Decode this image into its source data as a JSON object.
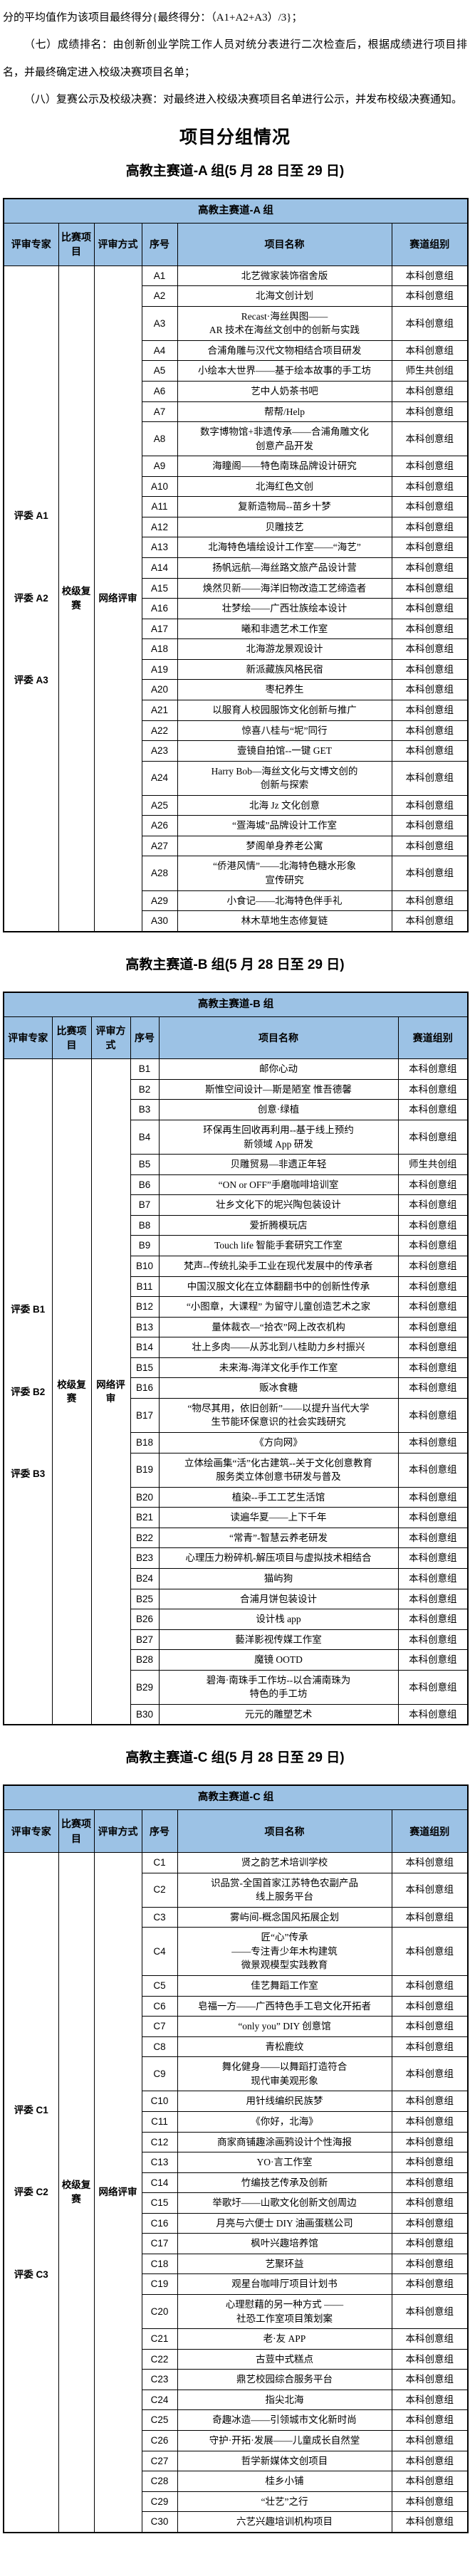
{
  "colors": {
    "header_bg": "#9CC2E5",
    "border": "#000000",
    "text": "#000000"
  },
  "intro": {
    "continuation": "分的平均值作为该项目最终得分{最终得分：（A1+A2+A3）/3}；",
    "item7": "（七）成绩排名：由创新创业学院工作人员对统分表进行二次检查后，根据成绩进行项目排名，并最终确定进入校级决赛项目名单；",
    "item8": "（八）复赛公示及校级决赛：对最终进入校级决赛项目名单进行公示，并发布校级决赛通知。"
  },
  "page_title": "项目分组情况",
  "groups": [
    {
      "heading": "高教主赛道-A 组(5 月 28 日至 29 日)",
      "table_title": "高教主赛道-A 组",
      "columns": [
        "评审专家",
        "比赛项目",
        "评审方式",
        "序号",
        "项目名称",
        "赛道组别"
      ],
      "experts": [
        "评委 A1",
        "评委 A2",
        "评委 A3"
      ],
      "contest_stage": "校级复赛",
      "review_mode": "网络评审",
      "rows": [
        {
          "no": "A1",
          "name": "北艺微家装饰宿舍版",
          "group": "本科创意组"
        },
        {
          "no": "A2",
          "name": "北海文创计划",
          "group": "本科创意组"
        },
        {
          "no": "A3",
          "name": "Recast·海丝舆图——\nAR 技术在海丝文创中的创新与实践",
          "group": "本科创意组"
        },
        {
          "no": "A4",
          "name": "合浦角雕与汉代文物相结合项目研发",
          "group": "本科创意组"
        },
        {
          "no": "A5",
          "name": "小绘本大世界——基于绘本故事的手工坊",
          "group": "师生共创组"
        },
        {
          "no": "A6",
          "name": "艺中人奶茶书吧",
          "group": "本科创意组"
        },
        {
          "no": "A7",
          "name": "帮帮/Help",
          "group": "本科创意组"
        },
        {
          "no": "A8",
          "name": "数字博物馆+非遗传承——合浦角雕文化\n创意产品开发",
          "group": "本科创意组"
        },
        {
          "no": "A9",
          "name": "海瞳阁——特色南珠品牌设计研究",
          "group": "本科创意组"
        },
        {
          "no": "A10",
          "name": "北海红色文创",
          "group": "本科创意组"
        },
        {
          "no": "A11",
          "name": "复新造物局--苗乡十梦",
          "group": "本科创意组"
        },
        {
          "no": "A12",
          "name": "贝雕技艺",
          "group": "本科创意组"
        },
        {
          "no": "A13",
          "name": "北海特色墙绘设计工作室——“海艺”",
          "group": "本科创意组"
        },
        {
          "no": "A14",
          "name": "扬帆远航—海丝路文旅产品设计营",
          "group": "本科创意组"
        },
        {
          "no": "A15",
          "name": "焕然贝新——海洋旧物改造工艺缔造者",
          "group": "本科创意组"
        },
        {
          "no": "A16",
          "name": "壮梦绘——广西壮族绘本设计",
          "group": "本科创意组"
        },
        {
          "no": "A17",
          "name": "曦和非遗艺术工作室",
          "group": "本科创意组"
        },
        {
          "no": "A18",
          "name": "北海游龙景观设计",
          "group": "本科创意组"
        },
        {
          "no": "A19",
          "name": "新派藏族风格民宿",
          "group": "本科创意组"
        },
        {
          "no": "A20",
          "name": "枣杞养生",
          "group": "本科创意组"
        },
        {
          "no": "A21",
          "name": "以服育人校园服饰文化创新与推广",
          "group": "本科创意组"
        },
        {
          "no": "A22",
          "name": "惊喜八桂与“坭”同行",
          "group": "本科创意组"
        },
        {
          "no": "A23",
          "name": "壹镜自拍馆--一键 GET",
          "group": "本科创意组"
        },
        {
          "no": "A24",
          "name": "Harry Bob—海丝文化与文博文创的\n创新与探索",
          "group": "本科创意组"
        },
        {
          "no": "A25",
          "name": "北海 Jz 文化创意",
          "group": "本科创意组"
        },
        {
          "no": "A26",
          "name": "“疍海城”品牌设计工作室",
          "group": "本科创意组"
        },
        {
          "no": "A27",
          "name": "梦阁单身养老公寓",
          "group": "本科创意组"
        },
        {
          "no": "A28",
          "name": "“侨港风情”——北海特色糖水形象\n宣传研究",
          "group": "本科创意组"
        },
        {
          "no": "A29",
          "name": "小食记——北海特色伴手礼",
          "group": "本科创意组"
        },
        {
          "no": "A30",
          "name": "林木草地生态修复链",
          "group": "本科创意组"
        }
      ]
    },
    {
      "heading": "高教主赛道-B 组(5 月 28 日至 29 日)",
      "table_title": "高教主赛道-B 组",
      "columns": [
        "评审专家",
        "比赛项目",
        "评审方式",
        "序号",
        "项目名称",
        "赛道组别"
      ],
      "experts": [
        "评委 B1",
        "评委 B2",
        "评委 B3"
      ],
      "contest_stage": "校级复赛",
      "review_mode": "网络评审",
      "rows": [
        {
          "no": "B1",
          "name": "邮你心动",
          "group": "本科创意组"
        },
        {
          "no": "B2",
          "name": "斯惟空间设计—斯是陋室 惟吾德馨",
          "group": "本科创意组"
        },
        {
          "no": "B3",
          "name": "创意·绿植",
          "group": "本科创意组"
        },
        {
          "no": "B4",
          "name": "环保再生回收再利用--基于线上预约\n新领域 App 研发",
          "group": "本科创意组"
        },
        {
          "no": "B5",
          "name": "贝雕贸易—非遗正年轻",
          "group": "师生共创组"
        },
        {
          "no": "B6",
          "name": "“ON or OFF”手磨咖啡培训室",
          "group": "本科创意组"
        },
        {
          "no": "B7",
          "name": "壮乡文化下的坭兴陶包装设计",
          "group": "本科创意组"
        },
        {
          "no": "B8",
          "name": "爱折腾模玩店",
          "group": "本科创意组"
        },
        {
          "no": "B9",
          "name": "Touch life 智能手套研究工作室",
          "group": "本科创意组"
        },
        {
          "no": "B10",
          "name": "梵声--传统扎染手工业在现代发展中的传承者",
          "group": "本科创意组"
        },
        {
          "no": "B11",
          "name": "中国汉服文化在立体翻翻书中的创新性传承",
          "group": "本科创意组"
        },
        {
          "no": "B12",
          "name": "“小图章，大课程” 为留守儿童创造艺术之家",
          "group": "本科创意组"
        },
        {
          "no": "B13",
          "name": "量体裁衣—“拾衣”网上改衣机构",
          "group": "本科创意组"
        },
        {
          "no": "B14",
          "name": "壮上多肉——从苏北到八桂助力乡村振兴",
          "group": "本科创意组"
        },
        {
          "no": "B15",
          "name": "未来海-海洋文化手作工作室",
          "group": "本科创意组"
        },
        {
          "no": "B16",
          "name": "贩冰食糖",
          "group": "本科创意组"
        },
        {
          "no": "B17",
          "name": "“物尽其用，依旧创新”——以提升当代大学\n生节能环保意识的社会实践研究",
          "group": "本科创意组"
        },
        {
          "no": "B18",
          "name": "《方向网》",
          "group": "本科创意组"
        },
        {
          "no": "B19",
          "name": "立体绘画集“活”化古建筑--关于文化创意教育\n服务类立体创意书研发与普及",
          "group": "本科创意组"
        },
        {
          "no": "B20",
          "name": "植染--手工工艺生活馆",
          "group": "本科创意组"
        },
        {
          "no": "B21",
          "name": "读遍华夏——上下千年",
          "group": "本科创意组"
        },
        {
          "no": "B22",
          "name": "“常青”-智慧云养老研发",
          "group": "本科创意组"
        },
        {
          "no": "B23",
          "name": "心理压力粉碎机-解压项目与虚拟技术相结合",
          "group": "本科创意组"
        },
        {
          "no": "B24",
          "name": "猫屿狗",
          "group": "本科创意组"
        },
        {
          "no": "B25",
          "name": "合浦月饼包装设计",
          "group": "本科创意组"
        },
        {
          "no": "B26",
          "name": "设计栈 app",
          "group": "本科创意组"
        },
        {
          "no": "B27",
          "name": "藝洋影视传媒工作室",
          "group": "本科创意组"
        },
        {
          "no": "B28",
          "name": "魔镜 OOTD",
          "group": "本科创意组"
        },
        {
          "no": "B29",
          "name": "碧海·南珠手工作坊--以合浦南珠为\n特色的手工坊",
          "group": "本科创意组"
        },
        {
          "no": "B30",
          "name": "元元的雕塑艺术",
          "group": "本科创意组"
        }
      ]
    },
    {
      "heading": "高教主赛道-C 组(5 月 28 日至 29 日)",
      "table_title": "高教主赛道-C 组",
      "columns": [
        "评审专家",
        "比赛项目",
        "评审方式",
        "序号",
        "项目名称",
        "赛道组别"
      ],
      "experts": [
        "评委 C1",
        "评委 C2",
        "评委 C3"
      ],
      "contest_stage": "校级复赛",
      "review_mode": "网络评审",
      "rows": [
        {
          "no": "C1",
          "name": "贤之韵艺术培训学校",
          "group": "本科创意组"
        },
        {
          "no": "C2",
          "name": "识品赏-全国首家江苏特色农副产品\n线上服务平台",
          "group": "本科创意组"
        },
        {
          "no": "C3",
          "name": "雾屿间-概念国风拓展企划",
          "group": "本科创意组"
        },
        {
          "no": "C4",
          "name": "匠“心”传承\n——专注青少年木构建筑\n微景观模型实践教育",
          "group": "本科创意组"
        },
        {
          "no": "C5",
          "name": "佳艺舞蹈工作室",
          "group": "本科创意组"
        },
        {
          "no": "C6",
          "name": "皂福一方——广西特色手工皂文化开拓者",
          "group": "本科创意组"
        },
        {
          "no": "C7",
          "name": "“only you” DIY 创意馆",
          "group": "本科创意组"
        },
        {
          "no": "C8",
          "name": "青松鹿纹",
          "group": "本科创意组"
        },
        {
          "no": "C9",
          "name": "舞化健身——以舞蹈打造符合\n现代审美观形象",
          "group": "本科创意组"
        },
        {
          "no": "C10",
          "name": "用针线编织民族梦",
          "group": "本科创意组"
        },
        {
          "no": "C11",
          "name": "《你好，北海》",
          "group": "本科创意组"
        },
        {
          "no": "C12",
          "name": "商家商铺趣涂画鸦设计个性海报",
          "group": "本科创意组"
        },
        {
          "no": "C13",
          "name": "YO·言工作室",
          "group": "本科创意组"
        },
        {
          "no": "C14",
          "name": "竹编技艺传承及创新",
          "group": "本科创意组"
        },
        {
          "no": "C15",
          "name": "举歌圩——山歌文化创新文创周边",
          "group": "本科创意组"
        },
        {
          "no": "C16",
          "name": "月亮与六便士 DIY 油画蛋糕公司",
          "group": "本科创意组"
        },
        {
          "no": "C17",
          "name": "枫叶兴趣培养馆",
          "group": "本科创意组"
        },
        {
          "no": "C18",
          "name": "艺聚环益",
          "group": "本科创意组"
        },
        {
          "no": "C19",
          "name": "观星台咖啡厅项目计划书",
          "group": "本科创意组"
        },
        {
          "no": "C20",
          "name": "心理慰藉的另一种方式 ——\n社恐工作室项目策划案",
          "group": "本科创意组"
        },
        {
          "no": "C21",
          "name": "老·友 APP",
          "group": "本科创意组"
        },
        {
          "no": "C22",
          "name": "古荳中式糕点",
          "group": "本科创意组"
        },
        {
          "no": "C23",
          "name": "鼎艺校园综合服务平台",
          "group": "本科创意组"
        },
        {
          "no": "C24",
          "name": "指尖北海",
          "group": "本科创意组"
        },
        {
          "no": "C25",
          "name": "奇趣冰造——引领城市文化新时尚",
          "group": "本科创意组"
        },
        {
          "no": "C26",
          "name": "守护·开拓·发展——儿童成长自然堂",
          "group": "本科创意组"
        },
        {
          "no": "C27",
          "name": "哲学新媒体文创项目",
          "group": "本科创意组"
        },
        {
          "no": "C28",
          "name": "桂乡小铺",
          "group": "本科创意组"
        },
        {
          "no": "C29",
          "name": "“壮艺”之行",
          "group": "本科创意组"
        },
        {
          "no": "C30",
          "name": "六艺兴趣培训机构项目",
          "group": "本科创意组"
        }
      ]
    }
  ]
}
